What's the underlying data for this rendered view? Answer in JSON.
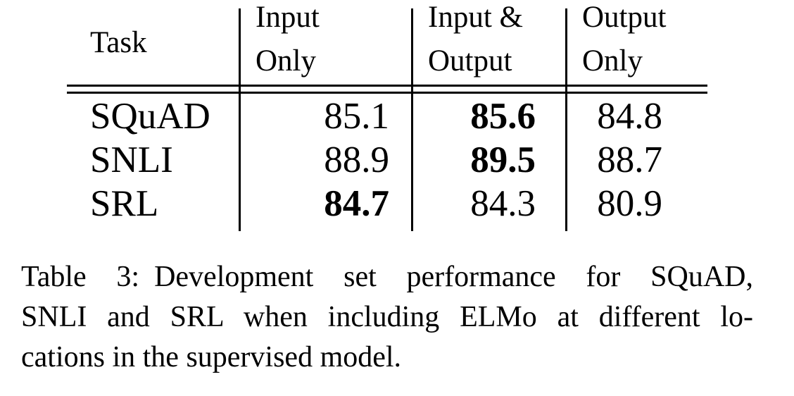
{
  "colors": {
    "background": "#ffffff",
    "text": "#000000",
    "rule": "#000000"
  },
  "table": {
    "columns": [
      {
        "label_lines": [
          "Task"
        ]
      },
      {
        "label_lines": [
          "Input",
          "Only"
        ]
      },
      {
        "label_lines": [
          "Input &",
          "Output"
        ]
      },
      {
        "label_lines": [
          "Output",
          "Only"
        ]
      }
    ],
    "rows": [
      {
        "task": "SQuAD",
        "values": [
          {
            "text": "85.1",
            "bold": false
          },
          {
            "text": "85.6",
            "bold": true
          },
          {
            "text": "84.8",
            "bold": false
          }
        ]
      },
      {
        "task": "SNLI",
        "values": [
          {
            "text": "88.9",
            "bold": false
          },
          {
            "text": "89.5",
            "bold": true
          },
          {
            "text": "88.7",
            "bold": false
          }
        ]
      },
      {
        "task": "SRL",
        "values": [
          {
            "text": "84.7",
            "bold": true
          },
          {
            "text": "84.3",
            "bold": false
          },
          {
            "text": "80.9",
            "bold": false
          }
        ]
      }
    ]
  },
  "caption": {
    "lines": [
      "Table 3: Development set performance for SQuAD,",
      "SNLI and SRL when including ELMo at different lo-",
      "cations in the supervised model."
    ],
    "full_text": "Table 3: Development set performance for SQuAD, SNLI and SRL when including ELMo at different locations in the supervised model."
  },
  "chart_data": {
    "type": "table",
    "title": "Table 3",
    "columns": [
      "Task",
      "Input Only",
      "Input & Output",
      "Output Only"
    ],
    "rows": [
      {
        "task": "SQuAD",
        "input_only": 85.1,
        "input_and_output": 85.6,
        "output_only": 84.8,
        "bold_column": "Input & Output"
      },
      {
        "task": "SNLI",
        "input_only": 88.9,
        "input_and_output": 89.5,
        "output_only": 88.7,
        "bold_column": "Input & Output"
      },
      {
        "task": "SRL",
        "input_only": 84.7,
        "input_and_output": 84.3,
        "output_only": 80.9,
        "bold_column": "Input Only"
      }
    ],
    "caption": "Table 3: Development set performance for SQuAD, SNLI and SRL when including ELMo at different locations in the supervised model.",
    "notes": "Bold value marks the best ELMo inclusion location per task row. Double horizontal rule below header; single vertical rules between columns; no bottom rule."
  }
}
